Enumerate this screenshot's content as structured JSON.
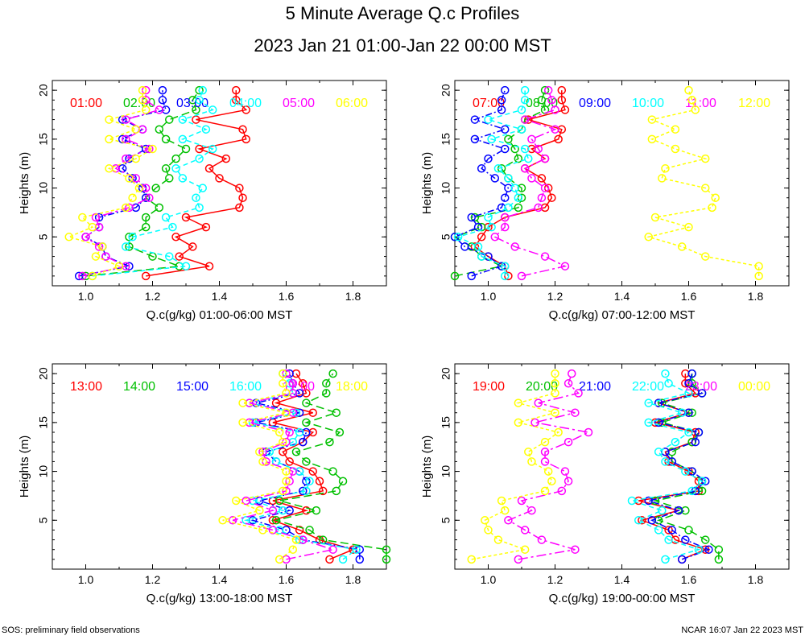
{
  "title": "5 Minute Average Q.c Profiles",
  "subtitle": "2023 Jan 21 01:00-Jan 22 00:00 MST",
  "footer_left": "SOS: preliminary field observations",
  "footer_right": "NCAR 16:07 Jan 22 2023 MST",
  "colors": [
    "#ff0000",
    "#00c000",
    "#0000ff",
    "#00ffff",
    "#ff00ff",
    "#ffff00"
  ],
  "chart_data": [
    {
      "type": "line",
      "xlabel": "Q.c(g/kg) 01:00-06:00 MST",
      "ylabel": "Heights (m)",
      "xlim": [
        0.9,
        1.9
      ],
      "ylim": [
        0,
        21
      ],
      "xticks": [
        1.0,
        1.2,
        1.4,
        1.6,
        1.8
      ],
      "yticks": [
        5,
        10,
        15,
        20
      ],
      "heights": [
        1,
        2,
        3,
        4,
        5,
        6,
        7,
        8,
        9,
        10,
        11,
        12,
        13,
        14,
        15,
        16,
        17,
        18,
        19,
        20
      ],
      "series": [
        {
          "name": "01:00",
          "values": [
            1.18,
            1.37,
            1.28,
            1.32,
            1.27,
            1.36,
            1.3,
            1.46,
            1.47,
            1.46,
            1.4,
            1.37,
            1.42,
            1.34,
            1.48,
            1.47,
            1.33,
            1.48,
            1.45,
            1.45
          ]
        },
        {
          "name": "02:00",
          "values": [
            1.0,
            1.28,
            1.2,
            1.13,
            1.13,
            1.18,
            1.18,
            1.22,
            1.18,
            1.21,
            1.25,
            1.24,
            1.27,
            1.3,
            1.24,
            1.22,
            1.25,
            1.33,
            1.32,
            1.34
          ]
        },
        {
          "name": "03:00",
          "values": [
            0.98,
            1.13,
            1.06,
            1.05,
            1.0,
            1.04,
            1.04,
            1.15,
            1.18,
            1.17,
            1.14,
            1.11,
            1.13,
            1.18,
            1.11,
            1.17,
            1.11,
            1.24,
            1.23,
            1.23
          ]
        },
        {
          "name": "04:00",
          "values": [
            1.02,
            1.3,
            1.25,
            1.12,
            1.14,
            1.26,
            1.24,
            1.34,
            1.33,
            1.35,
            1.29,
            1.27,
            1.34,
            1.38,
            1.29,
            1.36,
            1.29,
            1.38,
            1.34,
            1.35
          ]
        },
        {
          "name": "05:00",
          "values": [
            0.99,
            1.12,
            1.06,
            1.04,
            1.0,
            1.04,
            1.03,
            1.13,
            1.19,
            1.18,
            1.15,
            1.09,
            1.12,
            1.19,
            1.12,
            1.17,
            1.12,
            1.22,
            1.18,
            1.18
          ]
        },
        {
          "name": "06:00",
          "values": [
            1.02,
            1.1,
            1.03,
            1.05,
            0.95,
            1.02,
            0.99,
            1.12,
            1.14,
            1.16,
            1.13,
            1.07,
            1.15,
            1.2,
            1.07,
            1.15,
            1.07,
            1.18,
            1.17,
            1.17
          ]
        }
      ]
    },
    {
      "type": "line",
      "xlabel": "Q.c(g/kg) 07:00-12:00 MST",
      "ylabel": "Heights (m)",
      "xlim": [
        0.9,
        1.9
      ],
      "ylim": [
        0,
        21
      ],
      "xticks": [
        1.0,
        1.2,
        1.4,
        1.6,
        1.8
      ],
      "yticks": [
        5,
        10,
        15,
        20
      ],
      "heights": [
        1,
        2,
        3,
        4,
        5,
        6,
        7,
        8,
        9,
        10,
        11,
        12,
        13,
        14,
        15,
        16,
        17,
        18,
        19,
        20
      ],
      "series": [
        {
          "name": "07:00",
          "values": [
            1.06,
            1.05,
            1.0,
            0.96,
            0.98,
            1.0,
            1.05,
            1.17,
            1.19,
            1.18,
            1.16,
            1.11,
            1.17,
            1.13,
            1.21,
            1.22,
            1.12,
            1.23,
            1.22,
            1.22
          ]
        },
        {
          "name": "08:00",
          "values": [
            0.9,
            1.04,
            0.98,
            0.95,
            0.9,
            0.98,
            0.96,
            1.09,
            1.1,
            1.1,
            1.06,
            1.04,
            1.09,
            1.08,
            1.06,
            1.1,
            1.11,
            1.17,
            1.16,
            1.17
          ]
        },
        {
          "name": "09:00",
          "values": [
            0.95,
            1.04,
            1.0,
            0.93,
            0.9,
            0.97,
            0.95,
            1.04,
            1.05,
            1.06,
            1.02,
            0.98,
            1.0,
            1.05,
            0.96,
            1.05,
            0.96,
            1.04,
            1.04,
            1.05
          ]
        },
        {
          "name": "10:00",
          "values": [
            1.05,
            1.05,
            0.98,
            0.97,
            0.91,
            1.01,
            1.0,
            1.06,
            1.09,
            1.08,
            1.06,
            1.03,
            1.12,
            1.11,
            1.01,
            1.1,
            1.0,
            1.1,
            1.11,
            1.11
          ]
        },
        {
          "name": "11:00",
          "values": [
            1.1,
            1.23,
            1.17,
            1.08,
            1.02,
            1.05,
            1.05,
            1.15,
            1.16,
            1.17,
            1.13,
            1.11,
            1.17,
            1.15,
            1.13,
            1.2,
            1.11,
            1.2,
            1.19,
            1.18
          ]
        },
        {
          "name": "12:00",
          "values": [
            1.81,
            1.81,
            1.65,
            1.58,
            1.48,
            1.6,
            1.5,
            1.67,
            1.68,
            1.65,
            1.52,
            1.53,
            1.65,
            1.56,
            1.49,
            1.56,
            1.49,
            1.62,
            1.61,
            1.6
          ]
        }
      ]
    },
    {
      "type": "line",
      "xlabel": "Q.c(g/kg) 13:00-18:00 MST",
      "ylabel": "Heights (m)",
      "xlim": [
        0.9,
        1.9
      ],
      "ylim": [
        0,
        21
      ],
      "xticks": [
        1.0,
        1.2,
        1.4,
        1.6,
        1.8
      ],
      "yticks": [
        5,
        10,
        15,
        20
      ],
      "heights": [
        1,
        2,
        3,
        4,
        5,
        6,
        7,
        8,
        9,
        10,
        11,
        12,
        13,
        14,
        15,
        16,
        17,
        18,
        19,
        20
      ],
      "series": [
        {
          "name": "13:00",
          "values": [
            1.73,
            1.8,
            1.7,
            1.64,
            1.56,
            1.66,
            1.56,
            1.71,
            1.7,
            1.68,
            1.61,
            1.59,
            1.65,
            1.68,
            1.56,
            1.68,
            1.57,
            1.66,
            1.65,
            1.63
          ]
        },
        {
          "name": "14:00",
          "values": [
            1.9,
            1.9,
            1.71,
            1.67,
            1.57,
            1.69,
            1.58,
            1.75,
            1.77,
            1.74,
            1.66,
            1.63,
            1.73,
            1.76,
            1.66,
            1.75,
            1.66,
            1.72,
            1.72,
            1.74
          ]
        },
        {
          "name": "15:00",
          "values": [
            1.82,
            1.82,
            1.65,
            1.6,
            1.5,
            1.61,
            1.52,
            1.65,
            1.66,
            1.64,
            1.57,
            1.54,
            1.65,
            1.66,
            1.51,
            1.64,
            1.51,
            1.64,
            1.62,
            1.61
          ]
        },
        {
          "name": "16:00",
          "values": [
            1.77,
            1.81,
            1.64,
            1.58,
            1.48,
            1.59,
            1.5,
            1.66,
            1.67,
            1.64,
            1.57,
            1.55,
            1.62,
            1.64,
            1.5,
            1.63,
            1.49,
            1.62,
            1.61,
            1.59
          ]
        },
        {
          "name": "17:00",
          "values": [
            1.6,
            1.74,
            1.65,
            1.56,
            1.44,
            1.56,
            1.48,
            1.6,
            1.61,
            1.62,
            1.54,
            1.53,
            1.6,
            1.61,
            1.49,
            1.62,
            1.49,
            1.62,
            1.62,
            1.6
          ]
        },
        {
          "name": "18:00",
          "values": [
            1.58,
            1.62,
            1.63,
            1.53,
            1.41,
            1.52,
            1.45,
            1.59,
            1.6,
            1.6,
            1.53,
            1.52,
            1.59,
            1.58,
            1.47,
            1.6,
            1.47,
            1.6,
            1.59,
            1.59
          ]
        }
      ]
    },
    {
      "type": "line",
      "xlabel": "Q.c(g/kg) 19:00-00:00 MST",
      "ylabel": "Heights (m)",
      "xlim": [
        0.9,
        1.9
      ],
      "ylim": [
        0,
        21
      ],
      "xticks": [
        1.0,
        1.2,
        1.4,
        1.6,
        1.8
      ],
      "yticks": [
        5,
        10,
        15,
        20
      ],
      "heights": [
        1,
        2,
        3,
        4,
        5,
        6,
        7,
        8,
        9,
        10,
        11,
        12,
        13,
        14,
        15,
        16,
        17,
        18,
        19,
        20
      ],
      "series": [
        {
          "name": "19:00",
          "values": [
            1.58,
            1.65,
            1.56,
            1.54,
            1.46,
            1.57,
            1.45,
            1.63,
            1.63,
            1.6,
            1.54,
            1.53,
            1.61,
            1.62,
            1.5,
            1.6,
            1.51,
            1.62,
            1.59,
            1.59
          ]
        },
        {
          "name": "20:00",
          "values": [
            1.69,
            1.69,
            1.65,
            1.6,
            1.51,
            1.59,
            1.5,
            1.64,
            1.64,
            1.61,
            1.55,
            1.55,
            1.61,
            1.63,
            1.52,
            1.61,
            1.52,
            1.64,
            1.61,
            1.61
          ]
        },
        {
          "name": "21:00",
          "values": [
            1.58,
            1.66,
            1.59,
            1.55,
            1.49,
            1.57,
            1.48,
            1.62,
            1.65,
            1.61,
            1.55,
            1.53,
            1.62,
            1.63,
            1.51,
            1.6,
            1.51,
            1.64,
            1.6,
            1.61
          ]
        },
        {
          "name": "22:00",
          "values": [
            1.53,
            1.63,
            1.54,
            1.51,
            1.45,
            1.52,
            1.43,
            1.61,
            1.64,
            1.59,
            1.53,
            1.51,
            1.56,
            1.6,
            1.48,
            1.58,
            1.48,
            1.6,
            1.54,
            1.53
          ]
        },
        {
          "name": "23:00",
          "values": [
            1.09,
            1.26,
            1.16,
            1.11,
            1.06,
            1.13,
            1.1,
            1.22,
            1.24,
            1.23,
            1.17,
            1.17,
            1.24,
            1.3,
            1.14,
            1.26,
            1.15,
            1.27,
            1.24,
            1.25
          ]
        },
        {
          "name": "00:00",
          "values": [
            0.95,
            1.11,
            1.03,
            1.0,
            0.99,
            1.05,
            1.04,
            1.17,
            1.19,
            1.18,
            1.13,
            1.12,
            1.17,
            1.21,
            1.09,
            1.2,
            1.09,
            1.2,
            1.2,
            1.2
          ]
        }
      ]
    }
  ]
}
